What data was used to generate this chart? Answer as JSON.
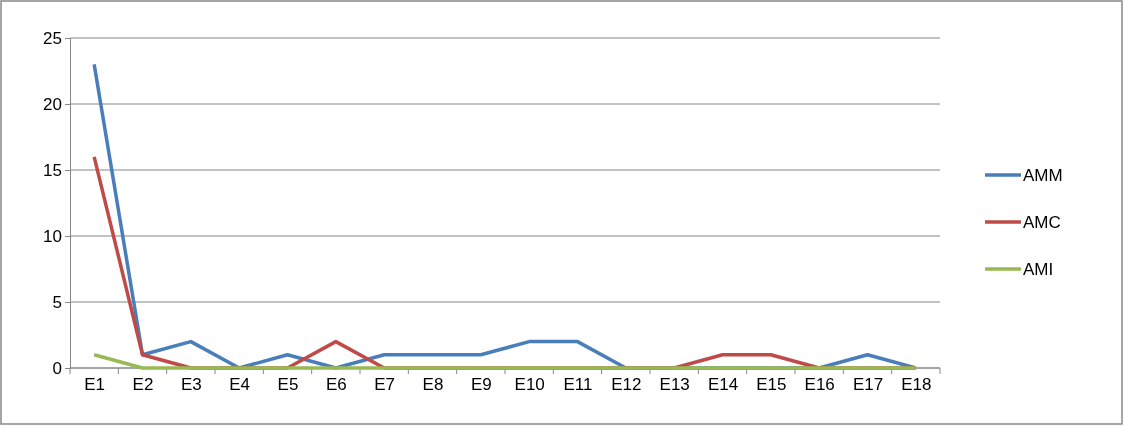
{
  "chart_data": {
    "type": "line",
    "categories": [
      "E1",
      "E2",
      "E3",
      "E4",
      "E5",
      "E6",
      "E7",
      "E8",
      "E9",
      "E10",
      "E11",
      "E12",
      "E13",
      "E14",
      "E15",
      "E16",
      "E17",
      "E18"
    ],
    "series": [
      {
        "name": "AMM",
        "color": "#4a7ebb",
        "values": [
          23,
          1,
          2,
          0,
          1,
          0,
          1,
          1,
          1,
          2,
          2,
          0,
          0,
          0,
          0,
          0,
          1,
          0
        ]
      },
      {
        "name": "AMC",
        "color": "#be4b48",
        "values": [
          16,
          1,
          0,
          0,
          0,
          2,
          0,
          0,
          0,
          0,
          0,
          0,
          0,
          1,
          1,
          0,
          0,
          0
        ]
      },
      {
        "name": "AMI",
        "color": "#98b954",
        "values": [
          1,
          0,
          0,
          0,
          0,
          0,
          0,
          0,
          0,
          0,
          0,
          0,
          0,
          0,
          0,
          0,
          0,
          0
        ]
      }
    ],
    "ylim": [
      0,
      25
    ],
    "yticks": [
      0,
      5,
      10,
      15,
      20,
      25
    ],
    "grid": "y",
    "legend": "right",
    "marker": "none",
    "line_style": "solid"
  }
}
